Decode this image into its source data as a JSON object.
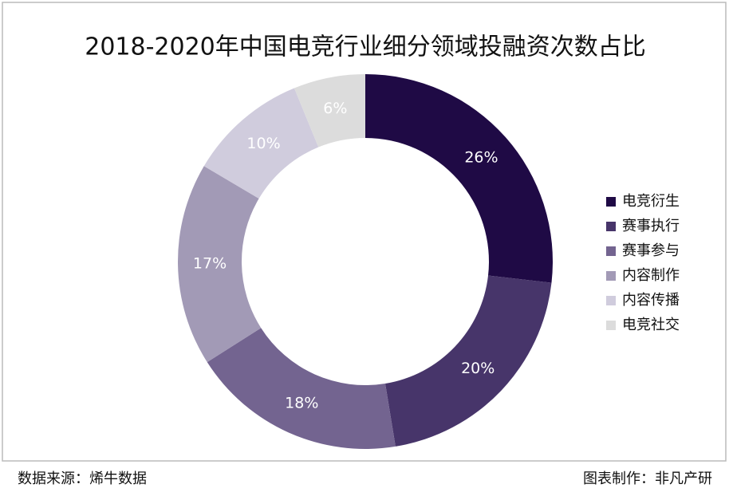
{
  "chart_data": {
    "type": "donut",
    "title": "2018-2020年中国电竞行业细分领域投融资次数占比",
    "categories": [
      "电竞衍生",
      "赛事执行",
      "赛事参与",
      "内容制作",
      "内容传播",
      "电竞社交"
    ],
    "values": [
      26,
      20,
      18,
      17,
      10,
      6
    ],
    "value_labels": [
      "26%",
      "20%",
      "18%",
      "17%",
      "10%",
      "6%"
    ],
    "colors": [
      "#1f0a45",
      "#47356a",
      "#736490",
      "#a29ab6",
      "#d0ccdd",
      "#dcdcdc"
    ],
    "legend": "right",
    "source": "数据来源：烯牛数据",
    "credit": "图表制作：非凡产研"
  }
}
